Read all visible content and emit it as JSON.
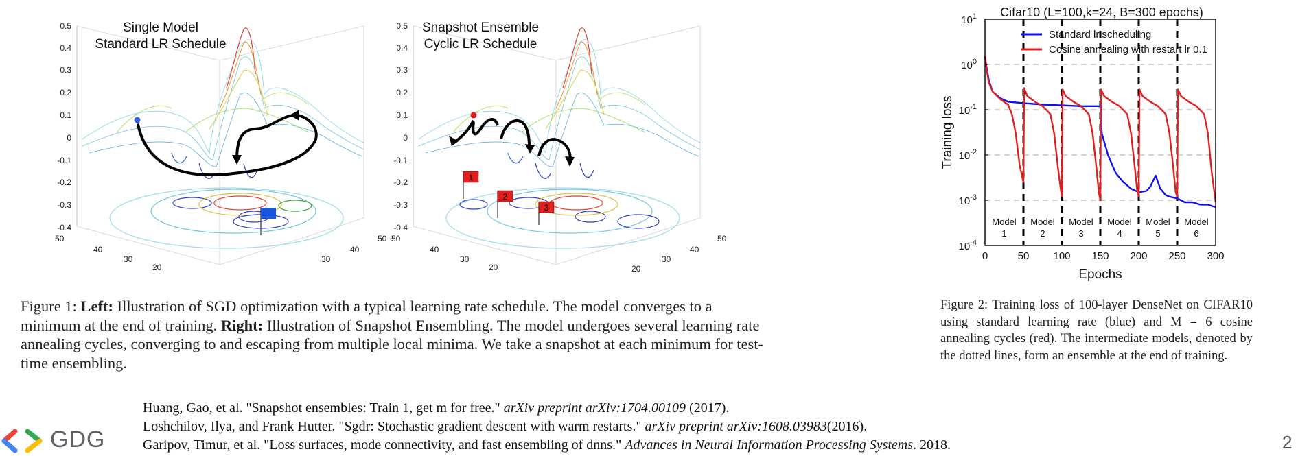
{
  "figure1": {
    "left_panel": {
      "title_line1": "Single Model",
      "title_line2": "Standard LR Schedule",
      "z_ticks": [
        "0.5",
        "0.4",
        "0.3",
        "0.2",
        "0.1",
        "0",
        "-0.1",
        "-0.2",
        "-0.3",
        "-0.4"
      ],
      "x_ticks": [
        "50",
        "40",
        "30",
        "20"
      ],
      "y_ticks": [
        "50",
        "40",
        "30"
      ]
    },
    "right_panel": {
      "title_line1": "Snapshot Ensemble",
      "title_line2": "Cyclic LR Schedule",
      "z_ticks": [
        "0.5",
        "0.4",
        "0.3",
        "0.2",
        "0.1",
        "0",
        "-0.1",
        "-0.2",
        "-0.3",
        "-0.4"
      ],
      "x_ticks": [
        "50",
        "40",
        "30",
        "20"
      ],
      "y_ticks": [
        "50",
        "40",
        "30",
        "20"
      ],
      "flags": [
        "1",
        "2",
        "3"
      ]
    },
    "caption": {
      "label": "Figure 1:",
      "left_bold": "Left:",
      "left_text": "Illustration of SGD optimization with a typical learning rate schedule. The model converges to a minimum at the end of training.",
      "right_bold": "Right:",
      "right_text": "Illustration of Snapshot Ensembling. The model undergoes several learning rate annealing cycles, converging to and escaping from multiple local minima. We take a snapshot at each minimum for test-time ensembling."
    }
  },
  "figure2": {
    "chart_data": {
      "type": "line",
      "title": "Cifar10 (L=100,k=24, B=300 epochs)",
      "xlabel": "Epochs",
      "ylabel": "Training loss",
      "xlim": [
        0,
        300
      ],
      "ylim": [
        0.0001,
        10
      ],
      "yscale": "log",
      "x_ticks": [
        "0",
        "50",
        "100",
        "150",
        "200",
        "250",
        "300"
      ],
      "y_ticks": [
        "10^1",
        "10^0",
        "10^-1",
        "10^-2",
        "10^-3",
        "10^-4"
      ],
      "grid": true,
      "legend_position": "top",
      "series": [
        {
          "name": "Standard lr scheduling",
          "color": "#1010ee",
          "x": [
            0,
            2,
            5,
            10,
            20,
            30,
            50,
            75,
            100,
            125,
            150,
            152,
            160,
            170,
            180,
            190,
            200,
            210,
            215,
            222,
            228,
            235,
            240,
            250,
            260,
            270,
            280,
            290,
            300
          ],
          "y": [
            1.5,
            0.9,
            0.45,
            0.25,
            0.18,
            0.15,
            0.14,
            0.13,
            0.125,
            0.12,
            0.12,
            0.03,
            0.01,
            0.004,
            0.0025,
            0.0018,
            0.0015,
            0.0016,
            0.002,
            0.0035,
            0.0018,
            0.0013,
            0.0012,
            0.0011,
            0.0009,
            0.0009,
            0.0008,
            0.0008,
            0.0007
          ]
        },
        {
          "name": "Cosine annealing with restart lr 0.1",
          "color": "#e02020",
          "x": [
            0,
            2,
            5,
            10,
            20,
            30,
            35,
            40,
            45,
            48,
            50,
            51,
            55,
            65,
            75,
            85,
            90,
            95,
            98,
            100,
            101,
            105,
            115,
            125,
            135,
            140,
            145,
            148,
            150,
            151,
            155,
            165,
            175,
            185,
            190,
            195,
            198,
            200,
            201,
            205,
            215,
            225,
            235,
            240,
            245,
            248,
            250,
            251,
            255,
            265,
            275,
            285,
            290,
            295,
            300
          ],
          "y": [
            1.5,
            0.8,
            0.4,
            0.25,
            0.17,
            0.13,
            0.08,
            0.03,
            0.006,
            0.0035,
            0.0025,
            0.3,
            0.2,
            0.15,
            0.12,
            0.08,
            0.03,
            0.005,
            0.002,
            0.0012,
            0.28,
            0.2,
            0.15,
            0.12,
            0.08,
            0.03,
            0.005,
            0.0015,
            0.001,
            0.28,
            0.2,
            0.15,
            0.12,
            0.08,
            0.03,
            0.005,
            0.0016,
            0.0012,
            0.28,
            0.2,
            0.15,
            0.12,
            0.08,
            0.03,
            0.005,
            0.0015,
            0.0012,
            0.28,
            0.2,
            0.15,
            0.12,
            0.08,
            0.03,
            0.004,
            0.0009
          ]
        }
      ],
      "restart_lines_x": [
        50,
        100,
        150,
        200,
        250
      ],
      "model_labels": [
        {
          "name": "Model",
          "num": "1",
          "x": 25
        },
        {
          "name": "Model",
          "num": "2",
          "x": 75
        },
        {
          "name": "Model",
          "num": "3",
          "x": 125
        },
        {
          "name": "Model",
          "num": "4",
          "x": 175
        },
        {
          "name": "Model",
          "num": "5",
          "x": 225
        },
        {
          "name": "Model",
          "num": "6",
          "x": 275
        }
      ]
    },
    "caption": "Figure 2: Training loss of 100-layer DenseNet on CIFAR10 using standard learning rate (blue) and M = 6 cosine annealing cycles (red). The intermediate models, denoted by the dotted lines, form an ensemble at the end of training."
  },
  "references": [
    {
      "plain_a": "Huang, Gao, et al. \"Snapshot ensembles: Train 1, get m for free.\" ",
      "italic": "arXiv preprint arXiv:1704.00109",
      "plain_b": " (2017)."
    },
    {
      "plain_a": "Loshchilov, Ilya, and Frank Hutter. \"Sgdr: Stochastic gradient descent with warm restarts.\" ",
      "italic": "arXiv preprint arXiv:1608.03983",
      "plain_b": "(2016)."
    },
    {
      "plain_a": "Garipov, Timur, et al. \"Loss surfaces, mode connectivity, and fast ensembling of dnns.\" ",
      "italic": "Advances in Neural Information Processing Systems",
      "plain_b": ". 2018."
    }
  ],
  "footer": {
    "logo_text": "GDG",
    "page_number": "2",
    "logo_colors": [
      "#ea4335",
      "#4285f4",
      "#34a853",
      "#fbbc04"
    ]
  }
}
